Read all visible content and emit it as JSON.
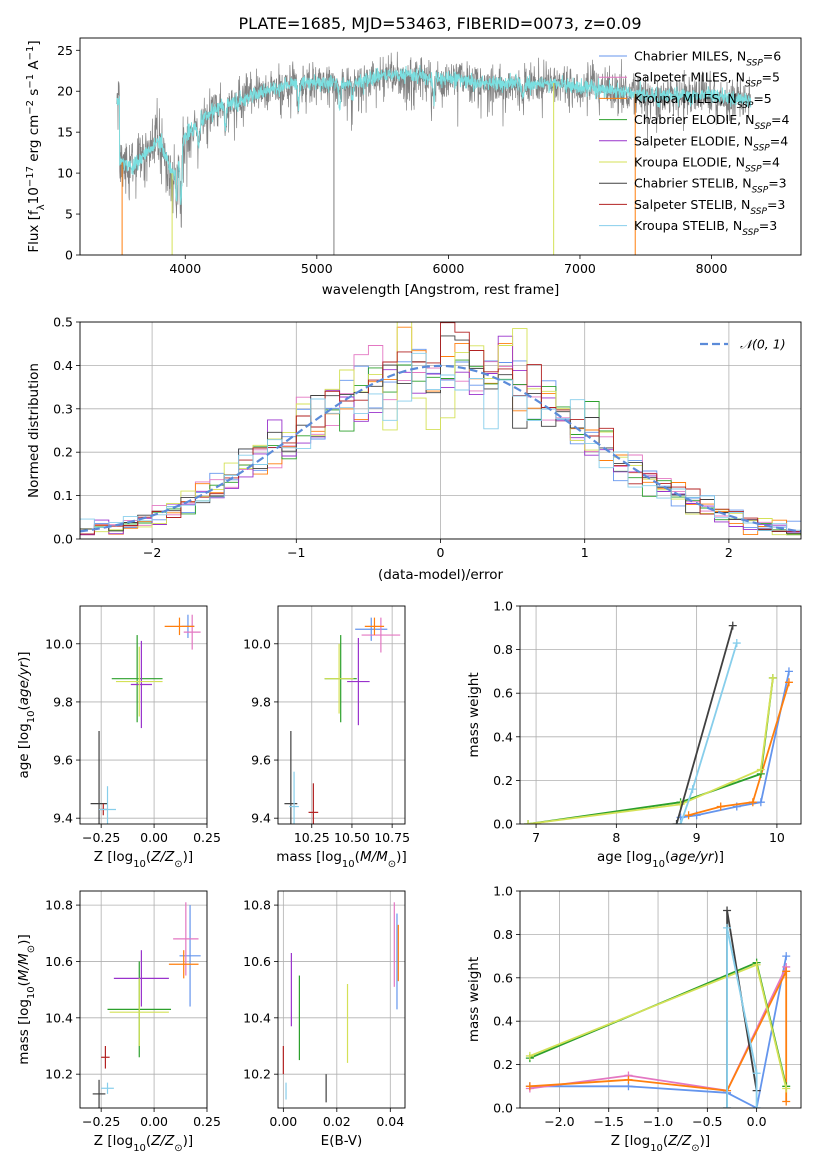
{
  "figure": {
    "title": "PLATE=1685, MJD=53463, FIBERID=0073, z=0.09"
  },
  "series": [
    {
      "key": "cm",
      "name": "Chabrier MILES, N",
      "nssp": "6",
      "color": "#6495ed"
    },
    {
      "key": "sm",
      "name": "Salpeter MILES, N",
      "nssp": "5",
      "color": "#e377c2"
    },
    {
      "key": "km",
      "name": "Kroupa MILES, N",
      "nssp": "5",
      "color": "#ff7f0e"
    },
    {
      "key": "ce",
      "name": "Chabrier ELODIE, N",
      "nssp": "4",
      "color": "#2ca02c"
    },
    {
      "key": "se",
      "name": "Salpeter ELODIE, N",
      "nssp": "4",
      "color": "#9932cc"
    },
    {
      "key": "ke",
      "name": "Kroupa ELODIE, N",
      "nssp": "4",
      "color": "#d4e157"
    },
    {
      "key": "cs",
      "name": "Chabrier STELIB, N",
      "nssp": "3",
      "color": "#404040"
    },
    {
      "key": "ss",
      "name": "Salpeter STELIB, N",
      "nssp": "3",
      "color": "#b22222"
    },
    {
      "key": "ks",
      "name": "Kroupa STELIB, N",
      "nssp": "3",
      "color": "#87ceeb"
    }
  ],
  "legend_sub": "SSP",
  "chart_data": [
    {
      "id": "spectrum",
      "type": "line",
      "xlabel": "wavelength [Angstrom, rest frame]",
      "ylabel_parts": [
        "Flux [f",
        "λ",
        "10",
        "−17",
        " erg cm",
        "−2",
        " s",
        "−1",
        " A",
        "−1",
        "]"
      ],
      "xlim": [
        3200,
        8680
      ],
      "ylim": [
        0,
        26.5
      ],
      "xticks": [
        4000,
        5000,
        6000,
        7000,
        8000
      ],
      "yticks": [
        0,
        5,
        10,
        15,
        20,
        25
      ],
      "data_color": "#808080",
      "model_color": "#7adfe0",
      "continuum": [
        [
          3500,
          11.5
        ],
        [
          3600,
          10.5
        ],
        [
          3700,
          12.5
        ],
        [
          3800,
          14
        ],
        [
          3900,
          10
        ],
        [
          4000,
          14.5
        ],
        [
          4100,
          16
        ],
        [
          4200,
          17.5
        ],
        [
          4300,
          18.5
        ],
        [
          4400,
          18.5
        ],
        [
          4500,
          19.5
        ],
        [
          4700,
          20.5
        ],
        [
          4900,
          21
        ],
        [
          5100,
          21
        ],
        [
          5300,
          21
        ],
        [
          5500,
          22
        ],
        [
          5700,
          22
        ],
        [
          6000,
          21.5
        ],
        [
          6200,
          21
        ],
        [
          6500,
          21
        ],
        [
          6800,
          21
        ],
        [
          7000,
          20.5
        ],
        [
          7300,
          20
        ],
        [
          7500,
          19.5
        ],
        [
          7800,
          19.5
        ],
        [
          8000,
          19.5
        ],
        [
          8200,
          19
        ],
        [
          8300,
          19
        ]
      ],
      "absorption": [
        [
          3934,
          5.5
        ],
        [
          3968,
          6.5
        ],
        [
          4102,
          3
        ],
        [
          4304,
          3
        ],
        [
          4861,
          2.5
        ],
        [
          5175,
          3
        ],
        [
          5270,
          2
        ],
        [
          5890,
          3
        ],
        [
          6563,
          2
        ],
        [
          7600,
          1.5
        ]
      ],
      "dropouts": [
        [
          3520,
          "#ff7f0e"
        ],
        [
          3900,
          "#d4e157"
        ],
        [
          5130,
          "#808080"
        ],
        [
          6800,
          "#d4e157"
        ],
        [
          7420,
          "#ff7f0e"
        ]
      ],
      "legend_position": "upper right"
    },
    {
      "id": "residual-hist",
      "type": "histogram",
      "xlabel": "(data-model)/error",
      "ylabel": "Normed distribution",
      "xlim": [
        -2.5,
        2.5
      ],
      "ylim": [
        0,
        0.5
      ],
      "xticks": [
        -2,
        -1,
        0,
        1,
        2
      ],
      "yticks": [
        0,
        0.1,
        0.2,
        0.3,
        0.4,
        0.5
      ],
      "bin_width": 0.1,
      "gaussian_label": "𝒩(0, 1)",
      "gaussian_color": "#5b8bd9",
      "legend_position": "upper right",
      "grid": true
    },
    {
      "id": "age-vs-z",
      "type": "scatter",
      "xlabel": "Z [log10(Z/Z⊙)]",
      "ylabel": "age  [log10(age/yr)]",
      "xlim": [
        -0.35,
        0.25
      ],
      "ylim": [
        9.38,
        10.13
      ],
      "xticks": [
        -0.25,
        0,
        0.25
      ],
      "yticks": [
        9.4,
        9.6,
        9.8,
        10.0
      ],
      "points": [
        {
          "s": "cm",
          "x": 0.16,
          "y": 10.06,
          "xe": 0.03,
          "ye": 0.04
        },
        {
          "s": "sm",
          "x": 0.18,
          "y": 10.04,
          "xe": 0.04,
          "ye": 0.06
        },
        {
          "s": "km",
          "x": 0.12,
          "y": 10.06,
          "xe": 0.07,
          "ye": 0.03
        },
        {
          "s": "ce",
          "x": -0.08,
          "y": 9.88,
          "xe": 0.12,
          "ye": 0.15
        },
        {
          "s": "se",
          "x": -0.06,
          "y": 9.86,
          "xe": 0.05,
          "ye": 0.15
        },
        {
          "s": "ke",
          "x": -0.07,
          "y": 9.87,
          "xe": 0.11,
          "ye": 0.12
        },
        {
          "s": "cs",
          "x": -0.26,
          "y": 9.45,
          "xe": 0.04,
          "ye": 0.25
        },
        {
          "s": "ss",
          "x": -0.24,
          "y": 9.43,
          "xe": 0.02,
          "ye": 0.02
        },
        {
          "s": "ks",
          "x": -0.22,
          "y": 9.43,
          "xe": 0.04,
          "ye": 0.08
        }
      ]
    },
    {
      "id": "age-vs-mass",
      "type": "scatter",
      "xlabel": "mass [log10(M/M⊙)]",
      "ylabel": "",
      "xlim": [
        10.04,
        10.83
      ],
      "ylim": [
        9.38,
        10.13
      ],
      "xticks": [
        10.25,
        10.5,
        10.75
      ],
      "yticks": [
        9.4,
        9.6,
        9.8,
        10.0
      ],
      "points": [
        {
          "s": "cm",
          "x": 10.62,
          "y": 10.05,
          "xe": 0.1,
          "ye": 0.04
        },
        {
          "s": "sm",
          "x": 10.68,
          "y": 10.03,
          "xe": 0.12,
          "ye": 0.06
        },
        {
          "s": "km",
          "x": 10.64,
          "y": 10.06,
          "xe": 0.06,
          "ye": 0.03
        },
        {
          "s": "ce",
          "x": 10.43,
          "y": 9.88,
          "xe": 0.1,
          "ye": 0.15
        },
        {
          "s": "se",
          "x": 10.54,
          "y": 9.87,
          "xe": 0.07,
          "ye": 0.15
        },
        {
          "s": "ke",
          "x": 10.42,
          "y": 9.88,
          "xe": 0.09,
          "ye": 0.12
        },
        {
          "s": "cs",
          "x": 10.12,
          "y": 9.45,
          "xe": 0.04,
          "ye": 0.25
        },
        {
          "s": "ss",
          "x": 10.26,
          "y": 9.42,
          "xe": 0.03,
          "ye": 0.1
        },
        {
          "s": "ks",
          "x": 10.14,
          "y": 9.44,
          "xe": 0.03,
          "ye": 0.12
        }
      ]
    },
    {
      "id": "mass-weight-vs-age",
      "type": "line",
      "xlabel": "age  [log10(age/yr)]",
      "ylabel": "mass weight",
      "xlim": [
        6.8,
        10.3
      ],
      "ylim": [
        0,
        1.0
      ],
      "xticks": [
        7,
        8,
        9,
        10
      ],
      "yticks": [
        0,
        0.2,
        0.4,
        0.6,
        0.8,
        1.0
      ],
      "lines": [
        {
          "s": "cm",
          "x": [
            8.8,
            9.0,
            9.5,
            9.8,
            10.15
          ],
          "y": [
            0.03,
            0.04,
            0.08,
            0.1,
            0.7
          ]
        },
        {
          "s": "km",
          "x": [
            8.9,
            9.3,
            9.7,
            10.15
          ],
          "y": [
            0.04,
            0.08,
            0.1,
            0.65
          ]
        },
        {
          "s": "ce",
          "x": [
            6.9,
            8.8,
            9.8,
            9.95
          ],
          "y": [
            0.0,
            0.1,
            0.23,
            0.67
          ]
        },
        {
          "s": "ke",
          "x": [
            6.9,
            8.8,
            9.8,
            9.95
          ],
          "y": [
            0.0,
            0.09,
            0.25,
            0.67
          ]
        },
        {
          "s": "cs",
          "x": [
            8.75,
            9.45
          ],
          "y": [
            0.0,
            0.91
          ]
        },
        {
          "s": "ks",
          "x": [
            8.8,
            8.95,
            9.5
          ],
          "y": [
            0.0,
            0.16,
            0.83
          ]
        }
      ]
    },
    {
      "id": "mass-vs-z",
      "type": "scatter",
      "xlabel": "Z [log10(Z/Z⊙)]",
      "ylabel": "mass [log10(M/M⊙)]",
      "xlim": [
        -0.35,
        0.25
      ],
      "ylim": [
        10.08,
        10.85
      ],
      "xticks": [
        -0.25,
        0,
        0.25
      ],
      "yticks": [
        10.2,
        10.4,
        10.6,
        10.8
      ],
      "points": [
        {
          "s": "cm",
          "x": 0.17,
          "y": 10.62,
          "xe": 0.05,
          "ye": 0.18
        },
        {
          "s": "sm",
          "x": 0.15,
          "y": 10.68,
          "xe": 0.06,
          "ye": 0.13
        },
        {
          "s": "km",
          "x": 0.14,
          "y": 10.59,
          "xe": 0.07,
          "ye": 0.05
        },
        {
          "s": "ce",
          "x": -0.07,
          "y": 10.43,
          "xe": 0.15,
          "ye": 0.17
        },
        {
          "s": "se",
          "x": -0.06,
          "y": 10.54,
          "xe": 0.13,
          "ye": 0.1
        },
        {
          "s": "ke",
          "x": -0.07,
          "y": 10.42,
          "xe": 0.14,
          "ye": 0.12
        },
        {
          "s": "cs",
          "x": -0.26,
          "y": 10.13,
          "xe": 0.03,
          "ye": 0.05
        },
        {
          "s": "ss",
          "x": -0.23,
          "y": 10.26,
          "xe": 0.02,
          "ye": 0.04
        },
        {
          "s": "ks",
          "x": -0.22,
          "y": 10.15,
          "xe": 0.03,
          "ye": 0.02
        }
      ]
    },
    {
      "id": "mass-vs-ebv",
      "type": "scatter",
      "xlabel": "E(B-V)",
      "ylabel": "",
      "xlim": [
        -0.002,
        0.0455
      ],
      "ylim": [
        10.08,
        10.85
      ],
      "xticks": [
        0.0,
        0.02,
        0.04
      ],
      "yticks": [
        10.2,
        10.4,
        10.6,
        10.8
      ],
      "points": [
        {
          "s": "cm",
          "x": 0.0425,
          "y": 10.6,
          "ye": 0.17
        },
        {
          "s": "sm",
          "x": 0.0415,
          "y": 10.66,
          "ye": 0.15
        },
        {
          "s": "km",
          "x": 0.043,
          "y": 10.63,
          "ye": 0.1
        },
        {
          "s": "ce",
          "x": 0.006,
          "y": 10.4,
          "ye": 0.15
        },
        {
          "s": "se",
          "x": 0.003,
          "y": 10.5,
          "ye": 0.13
        },
        {
          "s": "ke",
          "x": 0.024,
          "y": 10.38,
          "ye": 0.14
        },
        {
          "s": "cs",
          "x": 0.016,
          "y": 10.15,
          "ye": 0.05
        },
        {
          "s": "ss",
          "x": 0.0,
          "y": 10.25,
          "ye": 0.05
        },
        {
          "s": "ks",
          "x": 0.001,
          "y": 10.14,
          "ye": 0.03
        }
      ]
    },
    {
      "id": "mass-weight-vs-z",
      "type": "line",
      "xlabel": "Z [log10(Z/Z⊙)]",
      "ylabel": "mass weight",
      "xlim": [
        -2.4,
        0.45
      ],
      "ylim": [
        0,
        1.0
      ],
      "xticks": [
        -2.0,
        -1.5,
        -1.0,
        -0.5,
        0.0
      ],
      "yticks": [
        0,
        0.2,
        0.4,
        0.6,
        0.8,
        1.0
      ],
      "lines": [
        {
          "s": "cm",
          "x": [
            -2.3,
            -1.3,
            -0.3,
            0.0,
            0.3
          ],
          "y": [
            0.1,
            0.1,
            0.07,
            0.0,
            0.7
          ]
        },
        {
          "s": "sm",
          "x": [
            -2.3,
            -1.3,
            -0.3,
            0.3
          ],
          "y": [
            0.09,
            0.15,
            0.08,
            0.65
          ]
        },
        {
          "s": "km",
          "x": [
            -2.3,
            -1.3,
            -0.3,
            0.3,
            0.3
          ],
          "y": [
            0.1,
            0.13,
            0.08,
            0.63,
            0.03
          ]
        },
        {
          "s": "ce",
          "x": [
            -2.3,
            0.0,
            0.3
          ],
          "y": [
            0.23,
            0.67,
            0.1
          ]
        },
        {
          "s": "ke",
          "x": [
            -2.3,
            0.0,
            0.3
          ],
          "y": [
            0.24,
            0.66,
            0.09
          ]
        },
        {
          "s": "cs",
          "x": [
            -0.3,
            -0.3,
            0.0
          ],
          "y": [
            0.0,
            0.91,
            0.08
          ]
        },
        {
          "s": "ks",
          "x": [
            -0.3,
            -0.3,
            0.0,
            0.0
          ],
          "y": [
            0.0,
            0.83,
            0.16,
            0.0
          ]
        }
      ]
    }
  ]
}
